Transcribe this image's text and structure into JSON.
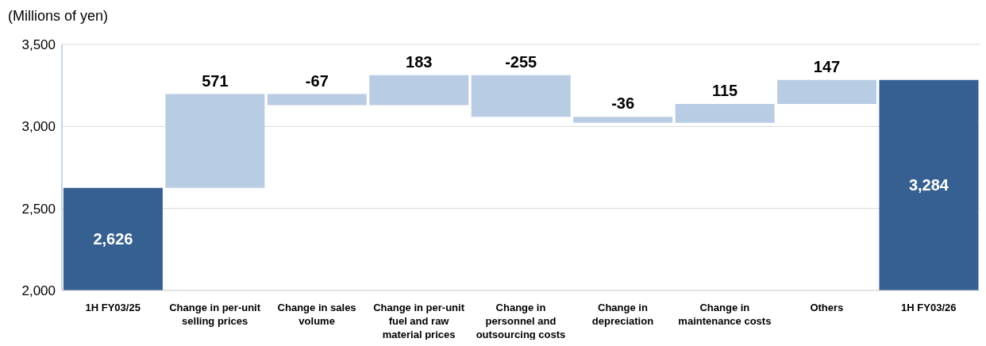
{
  "chart_data": {
    "type": "bar",
    "ylabel": "(Millions of yen)",
    "categories": [
      "1H FY03/25",
      "Change in per-unit selling prices",
      "Change in sales volume",
      "Change in per-unit fuel and raw material prices",
      "Change in personnel and outsourcing costs",
      "Change in depreciation",
      "Change in maintenance costs",
      "Others",
      "1H FY03/26"
    ],
    "values": [
      2626,
      571,
      -67,
      183,
      -255,
      -36,
      115,
      147,
      3284
    ],
    "base": [
      null,
      2626,
      3197,
      3130,
      3313,
      3058,
      3022,
      3137,
      null
    ],
    "colors": [
      "#366092",
      "#b8cce4",
      "#b8cce4",
      "#b8cce4",
      "#b8cce4",
      "#b8cce4",
      "#b8cce4",
      "#b8cce4",
      "#366092"
    ],
    "value_labels": [
      "2,626",
      "571",
      "-67",
      "183",
      "-255",
      "-36",
      "115",
      "147",
      "3,284"
    ],
    "ylim": [
      2000,
      3500
    ],
    "yticks": [
      {
        "value": 2000,
        "label": "2,000"
      },
      {
        "value": 2500,
        "label": "2,500"
      },
      {
        "value": 3000,
        "label": "3,000"
      },
      {
        "value": 3500,
        "label": "3,500"
      }
    ],
    "grid": "y"
  }
}
